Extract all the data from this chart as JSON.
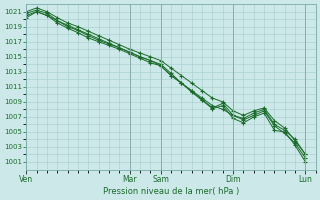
{
  "bg_color": "#cce8e8",
  "grid_color": "#a8cccc",
  "line_color": "#1a6b2a",
  "xlabel": "Pression niveau de la mer( hPa )",
  "ylim": [
    1000,
    1022
  ],
  "yticks": [
    1001,
    1003,
    1005,
    1007,
    1009,
    1011,
    1013,
    1015,
    1017,
    1019,
    1021
  ],
  "day_labels": [
    "Ven",
    "Mar",
    "Sam",
    "Dim",
    "Lun"
  ],
  "day_positions": [
    0,
    10,
    13,
    20,
    27
  ],
  "xlim": [
    0,
    28
  ],
  "series_x": [
    [
      0,
      1,
      2,
      3,
      4,
      5,
      6,
      7,
      8,
      9,
      10,
      11,
      12,
      13,
      14,
      15,
      16,
      17,
      18,
      19,
      20,
      21,
      22,
      23,
      24,
      25,
      26,
      27
    ],
    [
      0,
      1,
      2,
      3,
      4,
      5,
      6,
      7,
      8,
      9,
      10,
      11,
      12,
      13,
      14,
      15,
      16,
      17,
      18,
      19,
      20,
      21,
      22,
      23,
      24,
      25,
      26,
      27
    ],
    [
      0,
      1,
      2,
      3,
      4,
      5,
      6,
      7,
      8,
      9,
      10,
      11,
      12,
      13,
      14,
      15,
      16,
      17,
      18,
      19,
      20,
      21,
      22,
      23,
      24,
      25,
      26,
      27
    ],
    [
      0,
      1,
      2,
      3,
      4,
      5,
      6,
      7,
      8,
      9,
      10,
      11,
      12,
      13,
      14,
      15,
      16,
      17,
      18,
      19,
      20,
      21,
      22,
      23,
      24,
      25,
      26,
      27
    ]
  ],
  "series": [
    [
      1020.8,
      1021.2,
      1020.8,
      1019.8,
      1019.2,
      1018.6,
      1018.0,
      1017.4,
      1016.8,
      1016.2,
      1015.6,
      1015.0,
      1014.5,
      1014.0,
      1012.8,
      1011.5,
      1010.3,
      1009.2,
      1008.1,
      1008.5,
      1006.8,
      1006.2,
      1007.0,
      1007.5,
      1005.2,
      1005.0,
      1003.2,
      1001.0
    ],
    [
      1021.0,
      1021.5,
      1021.0,
      1020.2,
      1019.5,
      1019.0,
      1018.4,
      1017.8,
      1017.2,
      1016.6,
      1016.0,
      1015.5,
      1015.0,
      1014.5,
      1013.5,
      1012.5,
      1011.5,
      1010.5,
      1009.5,
      1009.0,
      1007.8,
      1007.2,
      1007.8,
      1008.2,
      1006.5,
      1005.5,
      1003.8,
      1002.0
    ],
    [
      1020.5,
      1021.0,
      1020.5,
      1019.8,
      1019.0,
      1018.5,
      1017.8,
      1017.2,
      1016.7,
      1016.2,
      1015.6,
      1015.0,
      1014.5,
      1013.8,
      1012.5,
      1011.5,
      1010.4,
      1009.3,
      1008.2,
      1008.8,
      1007.2,
      1006.8,
      1007.5,
      1008.0,
      1006.0,
      1005.2,
      1004.0,
      1002.0
    ],
    [
      1020.2,
      1021.0,
      1020.5,
      1019.5,
      1018.8,
      1018.2,
      1017.5,
      1017.0,
      1016.5,
      1016.0,
      1015.4,
      1014.8,
      1014.2,
      1013.8,
      1012.5,
      1011.5,
      1010.5,
      1009.5,
      1008.5,
      1008.0,
      1007.2,
      1006.6,
      1007.2,
      1007.8,
      1005.8,
      1004.8,
      1003.5,
      1001.5
    ]
  ]
}
